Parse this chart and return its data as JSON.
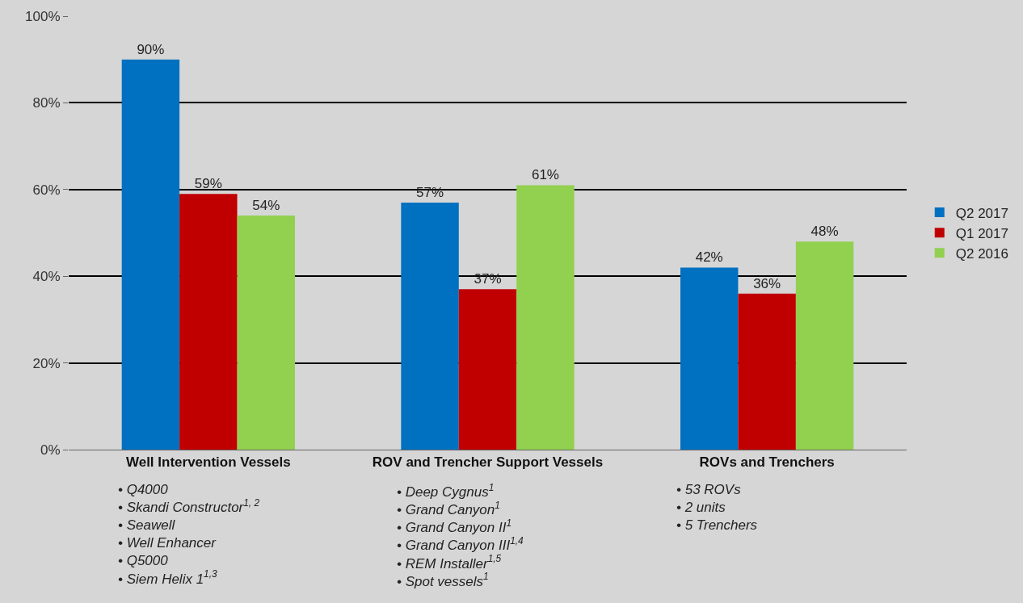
{
  "chart_data": {
    "type": "bar",
    "categories": [
      "Well Intervention Vessels",
      "ROV and Trencher Support Vessels",
      "ROVs and Trenchers"
    ],
    "series": [
      {
        "name": "Q2 2017",
        "color": "#0070c0",
        "values": [
          90,
          57,
          42
        ],
        "value_labels": [
          "90%",
          "57%",
          "42%"
        ]
      },
      {
        "name": "Q1 2017",
        "color": "#c00000",
        "values": [
          59,
          37,
          36
        ],
        "value_labels": [
          "59%",
          "37%",
          "36%"
        ]
      },
      {
        "name": "Q2 2016",
        "color": "#92d050",
        "values": [
          54,
          61,
          48
        ],
        "value_labels": [
          "54%",
          "61%",
          "48%"
        ]
      }
    ],
    "ylim": [
      0,
      100
    ],
    "yticks": [
      {
        "value": 0,
        "label": "0%"
      },
      {
        "value": 20,
        "label": "20%"
      },
      {
        "value": 40,
        "label": "40%"
      },
      {
        "value": 60,
        "label": "60%"
      },
      {
        "value": 80,
        "label": "80%"
      },
      {
        "value": 100,
        "label": "100%"
      }
    ],
    "grid": "y",
    "legend": "right",
    "annotations": [
      "• Q4000\n• Skandi Constructor$^{1, 2}$\n• Seawell\n• Well Enhancer\n• Q5000\n• Siem Helix 1$^{1,3}$",
      "• Deep Cygnus$^{1}$\n• Grand Canyon$^{1}$\n• Grand Canyon II$^{1}$\n• Grand Canyon III$^{1,4}$\n• REM Installer$^{1,5}$\n• Spot vessels$^{1}$",
      "• 53 ROVs\n• 2 units\n• 5 Trenchers"
    ]
  }
}
